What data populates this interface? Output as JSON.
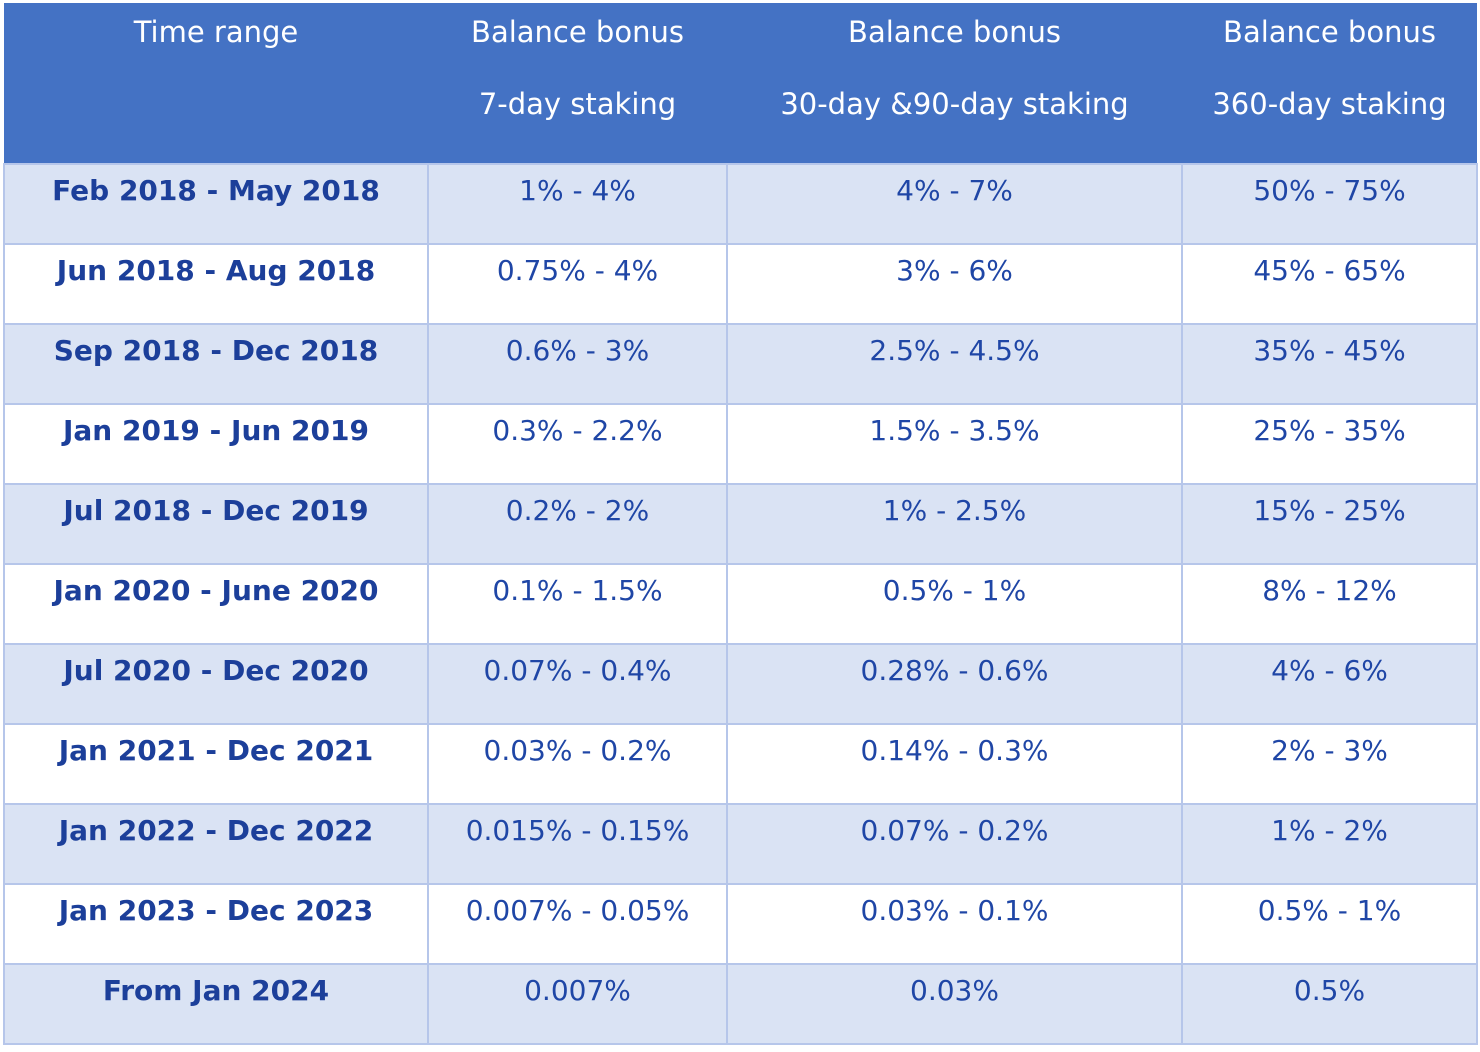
{
  "table": {
    "headers": [
      {
        "line1": "Time range",
        "line2": ""
      },
      {
        "line1": "Balance bonus",
        "line2": "7-day staking"
      },
      {
        "line1": "Balance bonus",
        "line2": "30-day &90-day staking"
      },
      {
        "line1": "Balance bonus",
        "line2": "360-day staking"
      }
    ],
    "rows": [
      [
        "Feb 2018 - May 2018",
        "1% - 4%",
        "4% - 7%",
        "50% - 75%"
      ],
      [
        "Jun 2018 - Aug 2018",
        "0.75% - 4%",
        "3% - 6%",
        "45% - 65%"
      ],
      [
        "Sep 2018 - Dec 2018",
        "0.6% - 3%",
        "2.5% - 4.5%",
        "35% - 45%"
      ],
      [
        "Jan 2019 - Jun 2019",
        "0.3% - 2.2%",
        "1.5% - 3.5%",
        "25% - 35%"
      ],
      [
        "Jul 2018 - Dec 2019",
        "0.2% - 2%",
        "1% - 2.5%",
        "15% - 25%"
      ],
      [
        "Jan 2020 - June 2020",
        "0.1% - 1.5%",
        "0.5% - 1%",
        "8% - 12%"
      ],
      [
        "Jul 2020 - Dec 2020",
        "0.07% - 0.4%",
        "0.28% - 0.6%",
        "4% - 6%"
      ],
      [
        "Jan 2021 - Dec 2021",
        "0.03% - 0.2%",
        "0.14% - 0.3%",
        "2% - 3%"
      ],
      [
        "Jan 2022 - Dec 2022",
        "0.015% - 0.15%",
        "0.07% - 0.2%",
        "1% - 2%"
      ],
      [
        "Jan 2023 - Dec 2023",
        "0.007% - 0.05%",
        "0.03% - 0.1%",
        "0.5% - 1%"
      ],
      [
        "From Jan 2024",
        "0.007%",
        "0.03%",
        "0.5%"
      ]
    ]
  },
  "colors": {
    "header_bg": "#4472c4",
    "header_text": "#ffffff",
    "row_alt_bg": "#dae3f4",
    "row_plain_bg": "#ffffff",
    "cell_text": "#1f46a6",
    "border": "#b6c6ea"
  }
}
